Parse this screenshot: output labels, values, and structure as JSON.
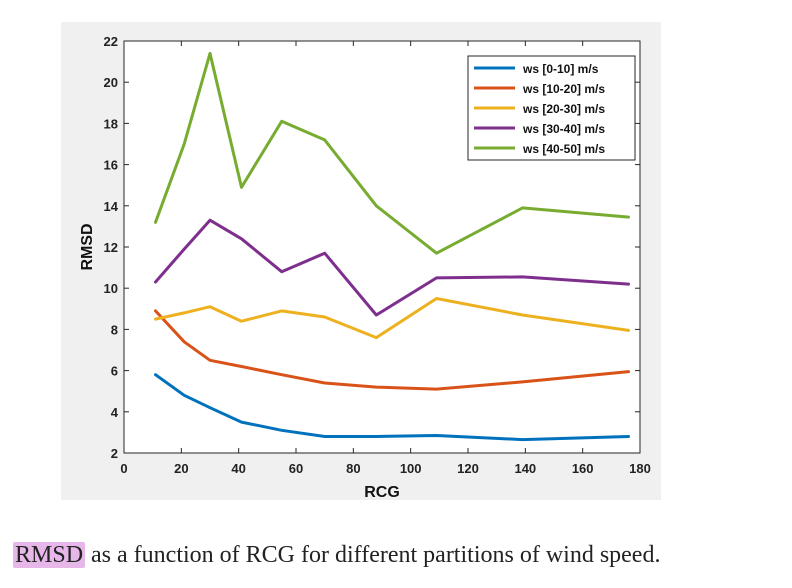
{
  "chart_data": {
    "type": "line",
    "xlabel": "RCG",
    "ylabel": "RMSD",
    "xlim": [
      0,
      180
    ],
    "ylim": [
      2,
      22
    ],
    "xticks": [
      0,
      20,
      40,
      60,
      80,
      100,
      120,
      140,
      160,
      180
    ],
    "yticks": [
      2,
      4,
      6,
      8,
      10,
      12,
      14,
      16,
      18,
      20,
      22
    ],
    "grid": false,
    "legend_position": "top-right",
    "x": [
      11,
      21,
      30,
      41,
      55,
      70,
      88,
      109,
      139,
      176
    ],
    "series": [
      {
        "name": "ws [0-10] m/s",
        "color": "#0072bd",
        "values": [
          5.8,
          4.8,
          4.2,
          3.5,
          3.1,
          2.8,
          2.8,
          2.85,
          2.65,
          2.8
        ]
      },
      {
        "name": "ws [10-20] m/s",
        "color": "#d95319",
        "values": [
          8.9,
          7.4,
          6.5,
          6.2,
          5.8,
          5.4,
          5.2,
          5.1,
          5.45,
          5.95
        ]
      },
      {
        "name": "ws [20-30] m/s",
        "color": "#edb120",
        "values": [
          8.5,
          8.8,
          9.1,
          8.4,
          8.9,
          8.6,
          7.6,
          9.5,
          8.7,
          7.95
        ]
      },
      {
        "name": "ws [30-40] m/s",
        "color": "#7e2f8e",
        "values": [
          10.3,
          11.9,
          13.3,
          12.4,
          10.8,
          11.7,
          8.7,
          10.5,
          10.55,
          10.2
        ]
      },
      {
        "name": "ws [40-50] m/s",
        "color": "#77ac30",
        "values": [
          13.2,
          17.0,
          21.4,
          14.9,
          18.1,
          17.2,
          14.0,
          11.7,
          13.9,
          13.45
        ]
      }
    ]
  },
  "caption": {
    "highlight": "RMSD",
    "text": " as a function of RCG for different partitions of wind speed."
  }
}
